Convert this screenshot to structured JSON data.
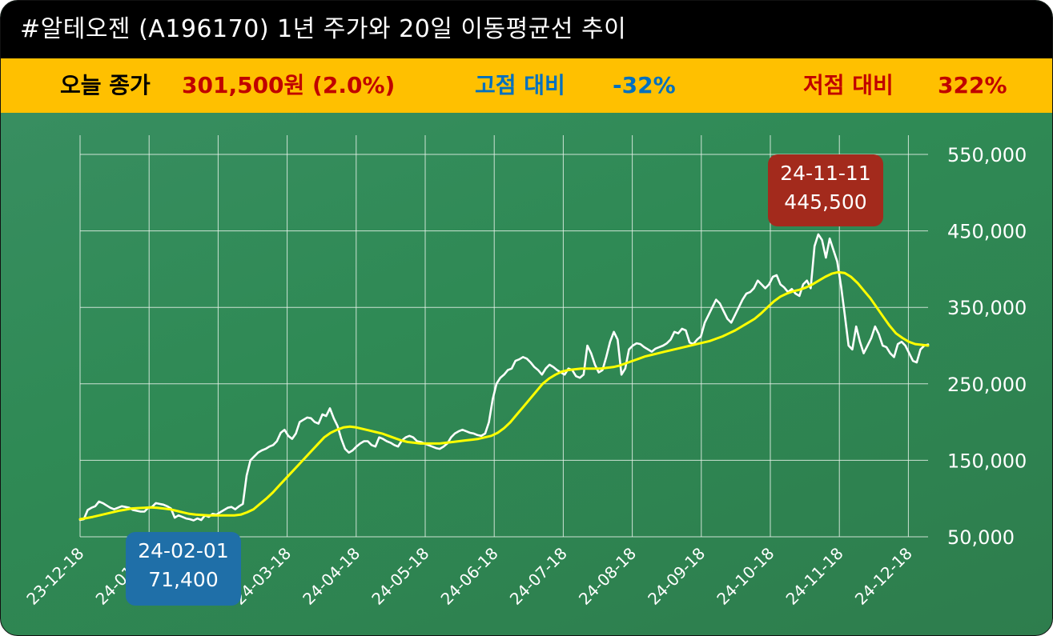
{
  "title": "#알테오젠 (A196170) 1년 주가와 20일 이동평균선 추이",
  "info": {
    "close_label": "오늘 종가",
    "close_value": "301,500원 (2.0%)",
    "high_label": "고점 대비",
    "high_value": "-32%",
    "low_label": "저점 대비",
    "low_value": "322%"
  },
  "colors": {
    "title_bg": "#000000",
    "info_bg": "#ffc000",
    "close_label": "#000000",
    "close_value": "#c00000",
    "high": "#0070c0",
    "low": "#c00000",
    "price_line": "#ffffff",
    "ma_line": "#ffff00",
    "high_callout": "#a32a1c",
    "low_callout": "#1f6fa8"
  },
  "chart_data": {
    "type": "line",
    "x_tick_labels": [
      "23-12-18",
      "24-01-18",
      "24-02-18",
      "24-03-18",
      "24-04-18",
      "24-05-18",
      "24-06-18",
      "24-07-18",
      "24-08-18",
      "24-09-18",
      "24-10-18",
      "24-11-18",
      "24-12-18"
    ],
    "y_tick_labels": [
      "550,000",
      "450,000",
      "350,000",
      "250,000",
      "150,000",
      "50,000"
    ],
    "y_ticks": [
      550000,
      450000,
      350000,
      250000,
      150000,
      50000
    ],
    "ylim": [
      50000,
      550000
    ],
    "series": [
      {
        "key": "price",
        "values": [
          72000,
          73000,
          85000,
          88000,
          90000,
          96000,
          94000,
          91000,
          88000,
          86000,
          88000,
          90000,
          89000,
          88000,
          85000,
          84000,
          83000,
          83000,
          88000,
          89000,
          94000,
          93000,
          92000,
          90000,
          87000,
          75000,
          78000,
          76000,
          74000,
          73000,
          71400,
          74000,
          72000,
          78000,
          76000,
          80000,
          79000,
          82000,
          85000,
          88000,
          89000,
          86000,
          90000,
          93000,
          130000,
          150000,
          155000,
          160000,
          163000,
          165000,
          168000,
          170000,
          175000,
          186000,
          190000,
          182000,
          178000,
          185000,
          200000,
          203000,
          206000,
          205000,
          200000,
          198000,
          210000,
          208000,
          218000,
          205000,
          195000,
          178000,
          165000,
          160000,
          163000,
          168000,
          172000,
          175000,
          175000,
          170000,
          168000,
          180000,
          178000,
          175000,
          173000,
          170000,
          168000,
          176000,
          180000,
          182000,
          180000,
          175000,
          174000,
          172000,
          170000,
          168000,
          166000,
          165000,
          168000,
          172000,
          180000,
          185000,
          188000,
          190000,
          188000,
          186000,
          185000,
          183000,
          182000,
          185000,
          200000,
          230000,
          250000,
          258000,
          262000,
          268000,
          270000,
          280000,
          282000,
          285000,
          283000,
          278000,
          272000,
          268000,
          262000,
          270000,
          275000,
          272000,
          268000,
          265000,
          262000,
          270000,
          268000,
          260000,
          258000,
          262000,
          300000,
          290000,
          275000,
          265000,
          268000,
          285000,
          305000,
          318000,
          308000,
          262000,
          270000,
          295000,
          300000,
          303000,
          302000,
          298000,
          295000,
          292000,
          296000,
          298000,
          300000,
          303000,
          308000,
          318000,
          316000,
          322000,
          320000,
          304000,
          302000,
          308000,
          312000,
          330000,
          340000,
          350000,
          360000,
          355000,
          345000,
          335000,
          330000,
          340000,
          350000,
          360000,
          368000,
          370000,
          375000,
          385000,
          380000,
          375000,
          380000,
          390000,
          392000,
          380000,
          376000,
          370000,
          374000,
          368000,
          365000,
          380000,
          385000,
          375000,
          430000,
          445500,
          438000,
          415000,
          440000,
          425000,
          410000,
          378000,
          340000,
          300000,
          295000,
          325000,
          305000,
          290000,
          300000,
          310000,
          325000,
          315000,
          300000,
          298000,
          290000,
          285000,
          302000,
          305000,
          300000,
          290000,
          280000,
          278000,
          295000,
          300000,
          301500
        ]
      },
      {
        "key": "ma20",
        "values": [
          73000,
          74500,
          76000,
          78000,
          80000,
          82000,
          84000,
          85500,
          87000,
          87500,
          88000,
          88500,
          88000,
          87000,
          86000,
          84000,
          82000,
          80000,
          79000,
          78500,
          78000,
          78000,
          78000,
          78000,
          78000,
          79000,
          82000,
          86000,
          93000,
          100000,
          108000,
          117000,
          126000,
          135000,
          144000,
          153000,
          162000,
          171000,
          180000,
          186000,
          190000,
          193000,
          194000,
          193000,
          191000,
          189000,
          187000,
          185000,
          182000,
          179000,
          176000,
          174000,
          173000,
          172000,
          172000,
          172000,
          172000,
          173000,
          174000,
          175000,
          176000,
          177000,
          178000,
          180000,
          182000,
          186000,
          192000,
          200000,
          210000,
          220000,
          230000,
          240000,
          250000,
          257000,
          262000,
          266000,
          268000,
          269000,
          270000,
          270000,
          270000,
          270000,
          271000,
          272000,
          274000,
          277000,
          280000,
          283000,
          286000,
          288000,
          290000,
          292000,
          294000,
          296000,
          298000,
          300000,
          302000,
          304000,
          306000,
          309000,
          312000,
          316000,
          320000,
          325000,
          330000,
          335000,
          342000,
          350000,
          358000,
          364000,
          368000,
          371000,
          373000,
          376000,
          380000,
          385000,
          390000,
          394000,
          396000,
          395000,
          390000,
          382000,
          372000,
          362000,
          350000,
          338000,
          326000,
          316000,
          310000,
          305000,
          302000,
          301000,
          300000
        ]
      }
    ],
    "annotations": [
      {
        "kind": "high",
        "date": "24-11-11",
        "value_label": "445,500",
        "value": 445500
      },
      {
        "kind": "low",
        "date": "24-02-01",
        "value_label": "71,400",
        "value": 71400
      }
    ]
  }
}
